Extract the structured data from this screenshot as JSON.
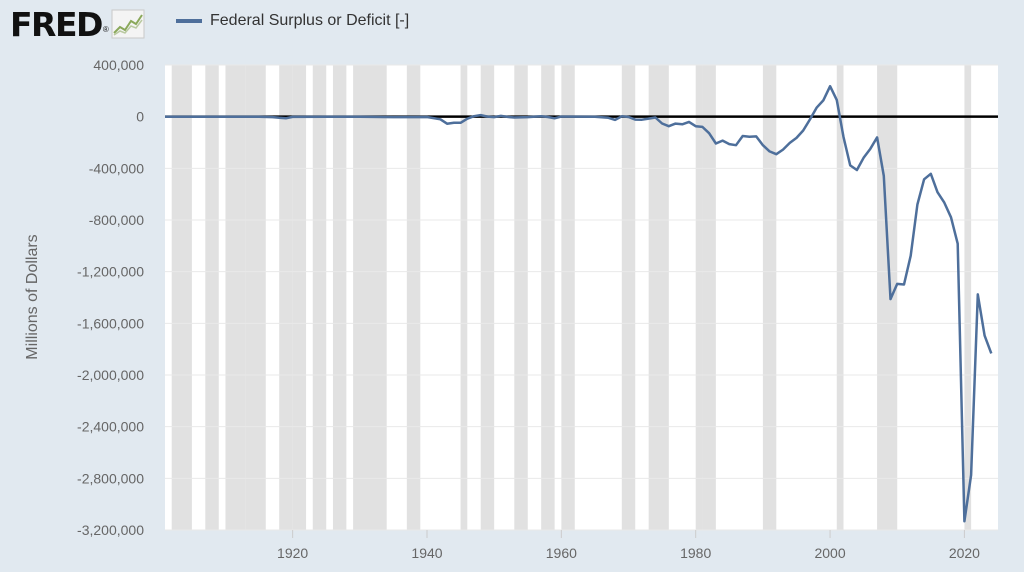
{
  "header": {
    "logo_text": "FRED",
    "logo_mark": "®",
    "logo_icon": "trend-line-chart-icon"
  },
  "chart_data": {
    "type": "line",
    "title": "",
    "series": [
      {
        "name": "Federal Surplus or Deficit [-]",
        "color": "#4e6f9b",
        "x": [
          1901,
          1905,
          1910,
          1915,
          1917,
          1918,
          1919,
          1920,
          1925,
          1930,
          1935,
          1940,
          1942,
          1943,
          1944,
          1945,
          1946,
          1947,
          1948,
          1949,
          1950,
          1951,
          1952,
          1953,
          1955,
          1957,
          1958,
          1959,
          1960,
          1965,
          1967,
          1968,
          1969,
          1970,
          1971,
          1972,
          1973,
          1974,
          1975,
          1976,
          1977,
          1978,
          1979,
          1980,
          1981,
          1982,
          1983,
          1984,
          1985,
          1986,
          1987,
          1988,
          1989,
          1990,
          1991,
          1992,
          1993,
          1994,
          1995,
          1996,
          1997,
          1998,
          1999,
          2000,
          2001,
          2002,
          2003,
          2004,
          2005,
          2006,
          2007,
          2008,
          2009,
          2010,
          2011,
          2012,
          2013,
          2014,
          2015,
          2016,
          2017,
          2018,
          2019,
          2020,
          2021,
          2022,
          2023,
          2024
        ],
        "y": [
          0,
          0,
          0,
          0,
          -3000,
          -9000,
          -13000,
          -2000,
          0,
          0,
          -3000,
          -2900,
          -20500,
          -54600,
          -47600,
          -47600,
          -15900,
          4000,
          11800,
          600,
          -3100,
          6100,
          -1500,
          -6500,
          -3000,
          3400,
          -2800,
          -12800,
          300,
          -1400,
          -8600,
          -25200,
          3200,
          -2800,
          -23000,
          -23400,
          -14900,
          -6100,
          -53200,
          -73700,
          -53700,
          -59200,
          -40700,
          -73800,
          -79000,
          -128000,
          -207800,
          -185400,
          -212300,
          -221200,
          -149700,
          -155200,
          -152600,
          -221000,
          -269200,
          -290300,
          -255100,
          -203200,
          -164000,
          -107400,
          -21900,
          69300,
          125600,
          236200,
          128200,
          -157800,
          -377600,
          -412700,
          -318300,
          -248200,
          -160700,
          -458600,
          -1412700,
          -1294400,
          -1299600,
          -1076600,
          -679800,
          -484600,
          -441960,
          -584650,
          -665450,
          -779140,
          -983590,
          -3132460,
          -2775300,
          -1375900,
          -1695000,
          -1833000
        ]
      }
    ],
    "ylabel": "Millions of Dollars",
    "xlim": [
      1901,
      2025
    ],
    "ylim": [
      -3200000,
      400000
    ],
    "xticks": [
      1920,
      1940,
      1960,
      1980,
      2000,
      2020
    ],
    "yticks": [
      400000,
      0,
      -400000,
      -800000,
      -1200000,
      -1600000,
      -2000000,
      -2400000,
      -2800000,
      -3200000
    ],
    "ytick_labels": [
      "400,000",
      "0",
      "-400,000",
      "-800,000",
      "-1,200,000",
      "-1,600,000",
      "-2,000,000",
      "-2,400,000",
      "-2,800,000",
      "-3,200,000"
    ],
    "xtick_labels": [
      "1920",
      "1940",
      "1960",
      "1980",
      "2000",
      "2020"
    ],
    "grid": true,
    "zero_line": true,
    "recessions": [
      [
        1902,
        1904
      ],
      [
        1907,
        1908
      ],
      [
        1910,
        1912
      ],
      [
        1913,
        1915
      ],
      [
        1918,
        1919
      ],
      [
        1920,
        1921
      ],
      [
        1923,
        1924
      ],
      [
        1926,
        1927
      ],
      [
        1929,
        1933
      ],
      [
        1937,
        1938
      ],
      [
        1945,
        1945
      ],
      [
        1948,
        1949
      ],
      [
        1953,
        1954
      ],
      [
        1957,
        1958
      ],
      [
        1960,
        1961
      ],
      [
        1969,
        1970
      ],
      [
        1973,
        1975
      ],
      [
        1980,
        1980
      ],
      [
        1981,
        1982
      ],
      [
        1990,
        1991
      ],
      [
        2001,
        2001
      ],
      [
        2007,
        2009
      ],
      [
        2020,
        2020
      ]
    ]
  }
}
